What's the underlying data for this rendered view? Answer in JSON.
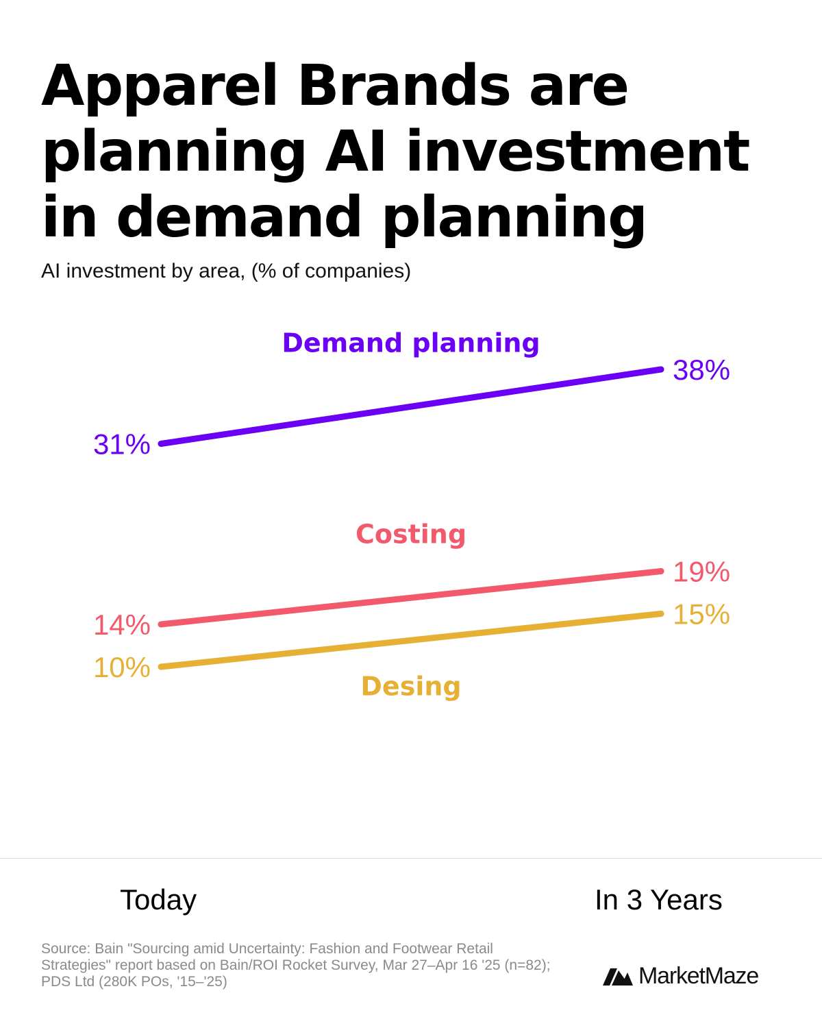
{
  "title": "Apparel Brands are planning AI investment in demand planning",
  "subtitle": "AI investment by area, (% of companies)",
  "chart_data": {
    "type": "line",
    "x": [
      "Today",
      "In 3 Years"
    ],
    "value_suffix": "%",
    "series": [
      {
        "name": "Demand planning",
        "values": [
          31,
          38
        ],
        "color": "#6a00f4",
        "label_position": "above"
      },
      {
        "name": "Costing",
        "values": [
          14,
          19
        ],
        "color": "#f2596b",
        "label_position": "above"
      },
      {
        "name": "Desing",
        "values": [
          10,
          15
        ],
        "color": "#e6b035",
        "label_position": "below"
      }
    ]
  },
  "source": "Source: Bain \"Sourcing amid Uncertainty: Fashion and Footwear Retail Strategies\" report based on Bain/ROI Rocket Survey, Mar 27–Apr 16 '25 (n=82); PDS Ltd (280K POs, '15–'25)",
  "brand": {
    "name": "MarketMaze",
    "icon": "marketmaze-logo-icon"
  }
}
